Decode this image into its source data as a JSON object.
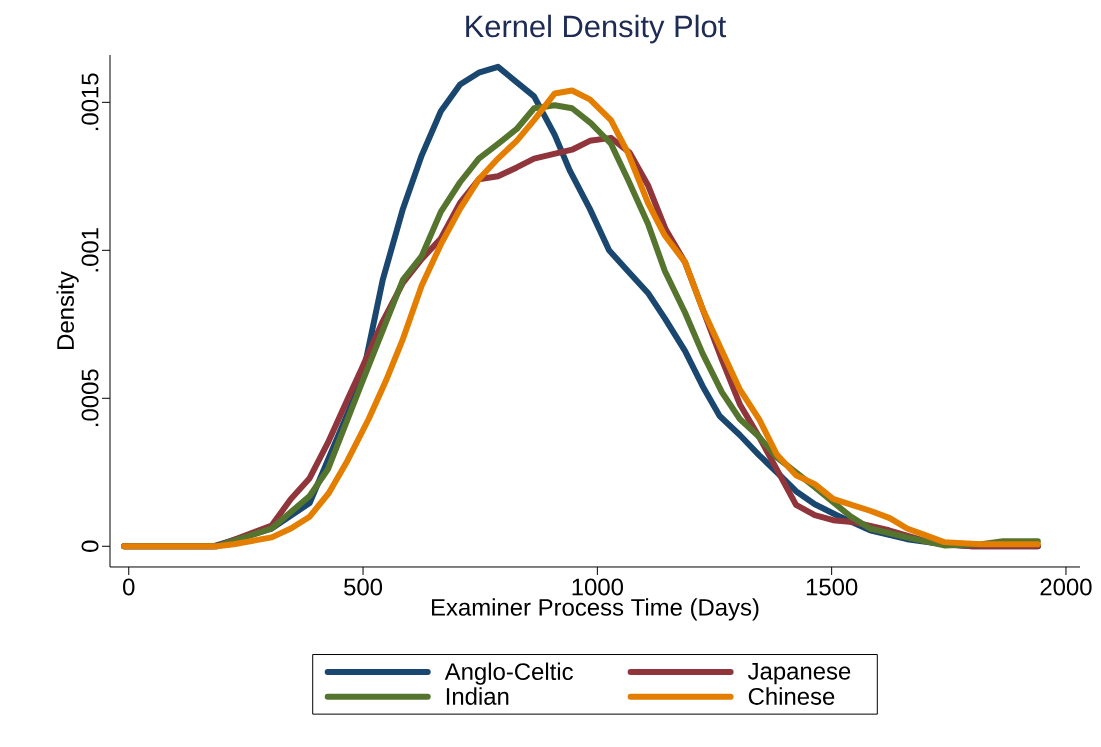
{
  "chart_data": {
    "type": "line",
    "title": "Kernel Density Plot",
    "xlabel": "Examiner Process Time (Days)",
    "ylabel": "Density",
    "xlim": [
      -40,
      2030
    ],
    "ylim": [
      -7e-05,
      0.00166
    ],
    "xticks": [
      0,
      500,
      1000,
      1500,
      2000
    ],
    "yticks": [
      0,
      {
        "value": 0.0005,
        "label": ".0005"
      },
      {
        "value": 0.001,
        "label": ".001"
      },
      {
        "value": 0.0015,
        "label": ".0015"
      }
    ],
    "legend": "bottom",
    "grid": false,
    "marker": "none",
    "line_style": "solid",
    "series": [
      {
        "name": "Anglo-Celtic",
        "color": "#1a476f",
        "x": [
          -10,
          180,
          305,
          386,
          497,
          542,
          585,
          625,
          666,
          707,
          747,
          788,
          865,
          909,
          941,
          984,
          1025,
          1065,
          1108,
          1144,
          1187,
          1225,
          1261,
          1304,
          1345,
          1383,
          1424,
          1464,
          1511,
          1582,
          1661,
          1740,
          1800,
          1940
        ],
        "values": [
          0,
          0,
          6e-05,
          0.000146,
          0.00056,
          0.0009,
          0.00114,
          0.00132,
          0.00147,
          0.00156,
          0.0016,
          0.00162,
          0.00152,
          0.00139,
          0.00127,
          0.00114,
          0.001,
          0.00093,
          0.000856,
          0.00077,
          0.00066,
          0.00054,
          0.00044,
          0.000376,
          0.000308,
          0.00025,
          0.000186,
          0.000142,
          0.000105,
          5.4e-05,
          2.4e-05,
          7e-06,
          0,
          0
        ]
      },
      {
        "name": "Japanese",
        "color": "#90353b",
        "x": [
          -10,
          188,
          305,
          346,
          386,
          425,
          468,
          497,
          542,
          585,
          625,
          666,
          707,
          747,
          788,
          828,
          865,
          946,
          984,
          1029,
          1069,
          1108,
          1146,
          1187,
          1225,
          1266,
          1304,
          1345,
          1383,
          1424,
          1464,
          1503,
          1550,
          1622,
          1701,
          1740,
          1800,
          1940
        ],
        "values": [
          0,
          0,
          7e-05,
          0.00016,
          0.00023,
          0.00035,
          0.0005,
          0.0006,
          0.00076,
          0.00089,
          0.00097,
          0.00104,
          0.00116,
          0.00124,
          0.00125,
          0.00128,
          0.00131,
          0.00134,
          0.00137,
          0.00138,
          0.00133,
          0.00122,
          0.00107,
          0.00096,
          0.0008,
          0.00063,
          0.00048,
          0.00037,
          0.00026,
          0.00014,
          0.000105,
          8.8e-05,
          8.1e-05,
          5.4e-05,
          1.7e-05,
          7e-06,
          0,
          0
        ]
      },
      {
        "name": "Indian",
        "color": "#55752f",
        "x": [
          -10,
          188,
          305,
          386,
          425,
          497,
          585,
          625,
          666,
          707,
          747,
          788,
          828,
          865,
          909,
          946,
          986,
          1029,
          1065,
          1108,
          1144,
          1187,
          1225,
          1266,
          1304,
          1345,
          1383,
          1464,
          1541,
          1582,
          1661,
          1740,
          1819,
          1866,
          1940
        ],
        "values": [
          0,
          0,
          6e-05,
          0.00017,
          0.00026,
          0.00055,
          0.0009,
          0.00098,
          0.00113,
          0.00123,
          0.00131,
          0.00136,
          0.00141,
          0.00148,
          0.00149,
          0.00148,
          0.00143,
          0.00136,
          0.00124,
          0.00109,
          0.00093,
          0.00079,
          0.00065,
          0.00052,
          0.00043,
          0.00037,
          0.0003,
          0.0002,
          0.0001,
          6e-05,
          3e-05,
          3e-06,
          7e-06,
          1.7e-05,
          1.7e-05
        ]
      },
      {
        "name": "Chinese",
        "color": "#e37e00",
        "x": [
          -10,
          188,
          224,
          305,
          346,
          386,
          427,
          467,
          512,
          549,
          585,
          625,
          666,
          707,
          747,
          788,
          828,
          865,
          909,
          946,
          984,
          1029,
          1065,
          1108,
          1144,
          1187,
          1225,
          1266,
          1304,
          1345,
          1383,
          1424,
          1464,
          1503,
          1582,
          1624,
          1661,
          1701,
          1740,
          1819,
          1940
        ],
        "values": [
          0,
          0,
          7e-06,
          3e-05,
          6e-05,
          0.0001,
          0.00018,
          0.00029,
          0.00043,
          0.00056,
          0.0007,
          0.00088,
          0.00102,
          0.00114,
          0.00124,
          0.00131,
          0.00137,
          0.00144,
          0.00153,
          0.00154,
          0.00151,
          0.00144,
          0.00133,
          0.00116,
          0.00105,
          0.00096,
          0.0008,
          0.00066,
          0.00053,
          0.00043,
          0.00031,
          0.00024,
          0.00021,
          0.00016,
          0.00012,
          9.5e-05,
          6e-05,
          3.7e-05,
          1.4e-05,
          7e-06,
          7e-06
        ]
      }
    ]
  }
}
